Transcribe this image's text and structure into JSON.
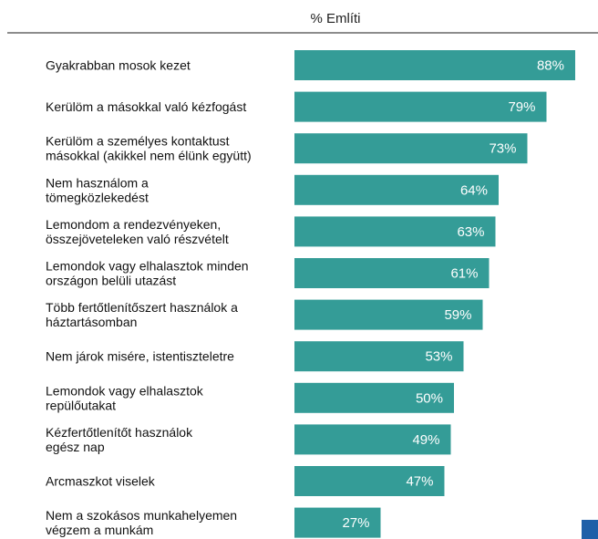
{
  "chart_data": {
    "type": "bar",
    "orientation": "horizontal",
    "title": "% Említi",
    "categories": [
      "Gyakrabban mosok kezet",
      "Kerülöm a másokkal való kézfogást",
      "Kerülöm a személyes kontaktust\nmásokkal (akikkel nem élünk együtt)",
      "Nem használom a\ntömegközlekedést",
      "Lemondom a rendezvényeken,\nösszejöveteleken való részvételt",
      "Lemondok vagy elhalasztok minden\nországon belüli utazást",
      "Több fertőtlenítőszert használok a\nháztartásomban",
      "Nem járok misére, istentiszteletre",
      "Lemondok vagy elhalasztok\nrepülőutakat",
      "Kézfertőtlenítőt használok\negész nap",
      "Arcmaszkot viselek",
      "Nem a szokásos munkahelyemen\nvégzem a munkám"
    ],
    "values": [
      88,
      79,
      73,
      64,
      63,
      61,
      59,
      53,
      50,
      49,
      47,
      27
    ],
    "value_labels": [
      "88%",
      "79%",
      "73%",
      "64%",
      "63%",
      "61%",
      "59%",
      "53%",
      "50%",
      "49%",
      "47%",
      "27%"
    ],
    "xlim": [
      0,
      100
    ],
    "grid": false,
    "legend": "none",
    "colors": {
      "bar": "#349c97",
      "label_text": "#ffffff",
      "category_text": "#111111",
      "header_rule": "#8c8c8c",
      "logo": "#1f5fa8"
    }
  }
}
